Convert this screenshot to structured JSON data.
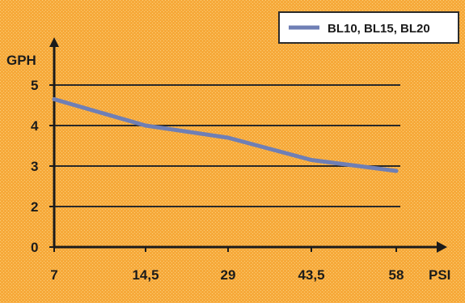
{
  "chart_data": {
    "type": "line",
    "title": "",
    "xlabel": "PSI",
    "ylabel": "GPH",
    "x_ticks": [
      "7",
      "14,5",
      "29",
      "43,5",
      "58"
    ],
    "y_ticks": [
      "0",
      "2",
      "3",
      "4",
      "5"
    ],
    "ylim": [
      0,
      5.5
    ],
    "grid": "horizontal",
    "legend_position": "top-right",
    "series": [
      {
        "name": "BL10, BL15, BL20",
        "x": [
          "7",
          "14,5",
          "29",
          "43,5",
          "58"
        ],
        "y": [
          4.65,
          4.0,
          3.7,
          3.15,
          2.88
        ]
      }
    ]
  },
  "colors": {
    "background": "#f5a12b",
    "plot_fill": "#f7b447",
    "line": "#6f7fb5",
    "axis": "#1b1b1b",
    "grid": "#2a2a2a",
    "legend_bg": "#ffffff",
    "legend_border": "#2b2b2b",
    "text": "#1b1b1b"
  }
}
